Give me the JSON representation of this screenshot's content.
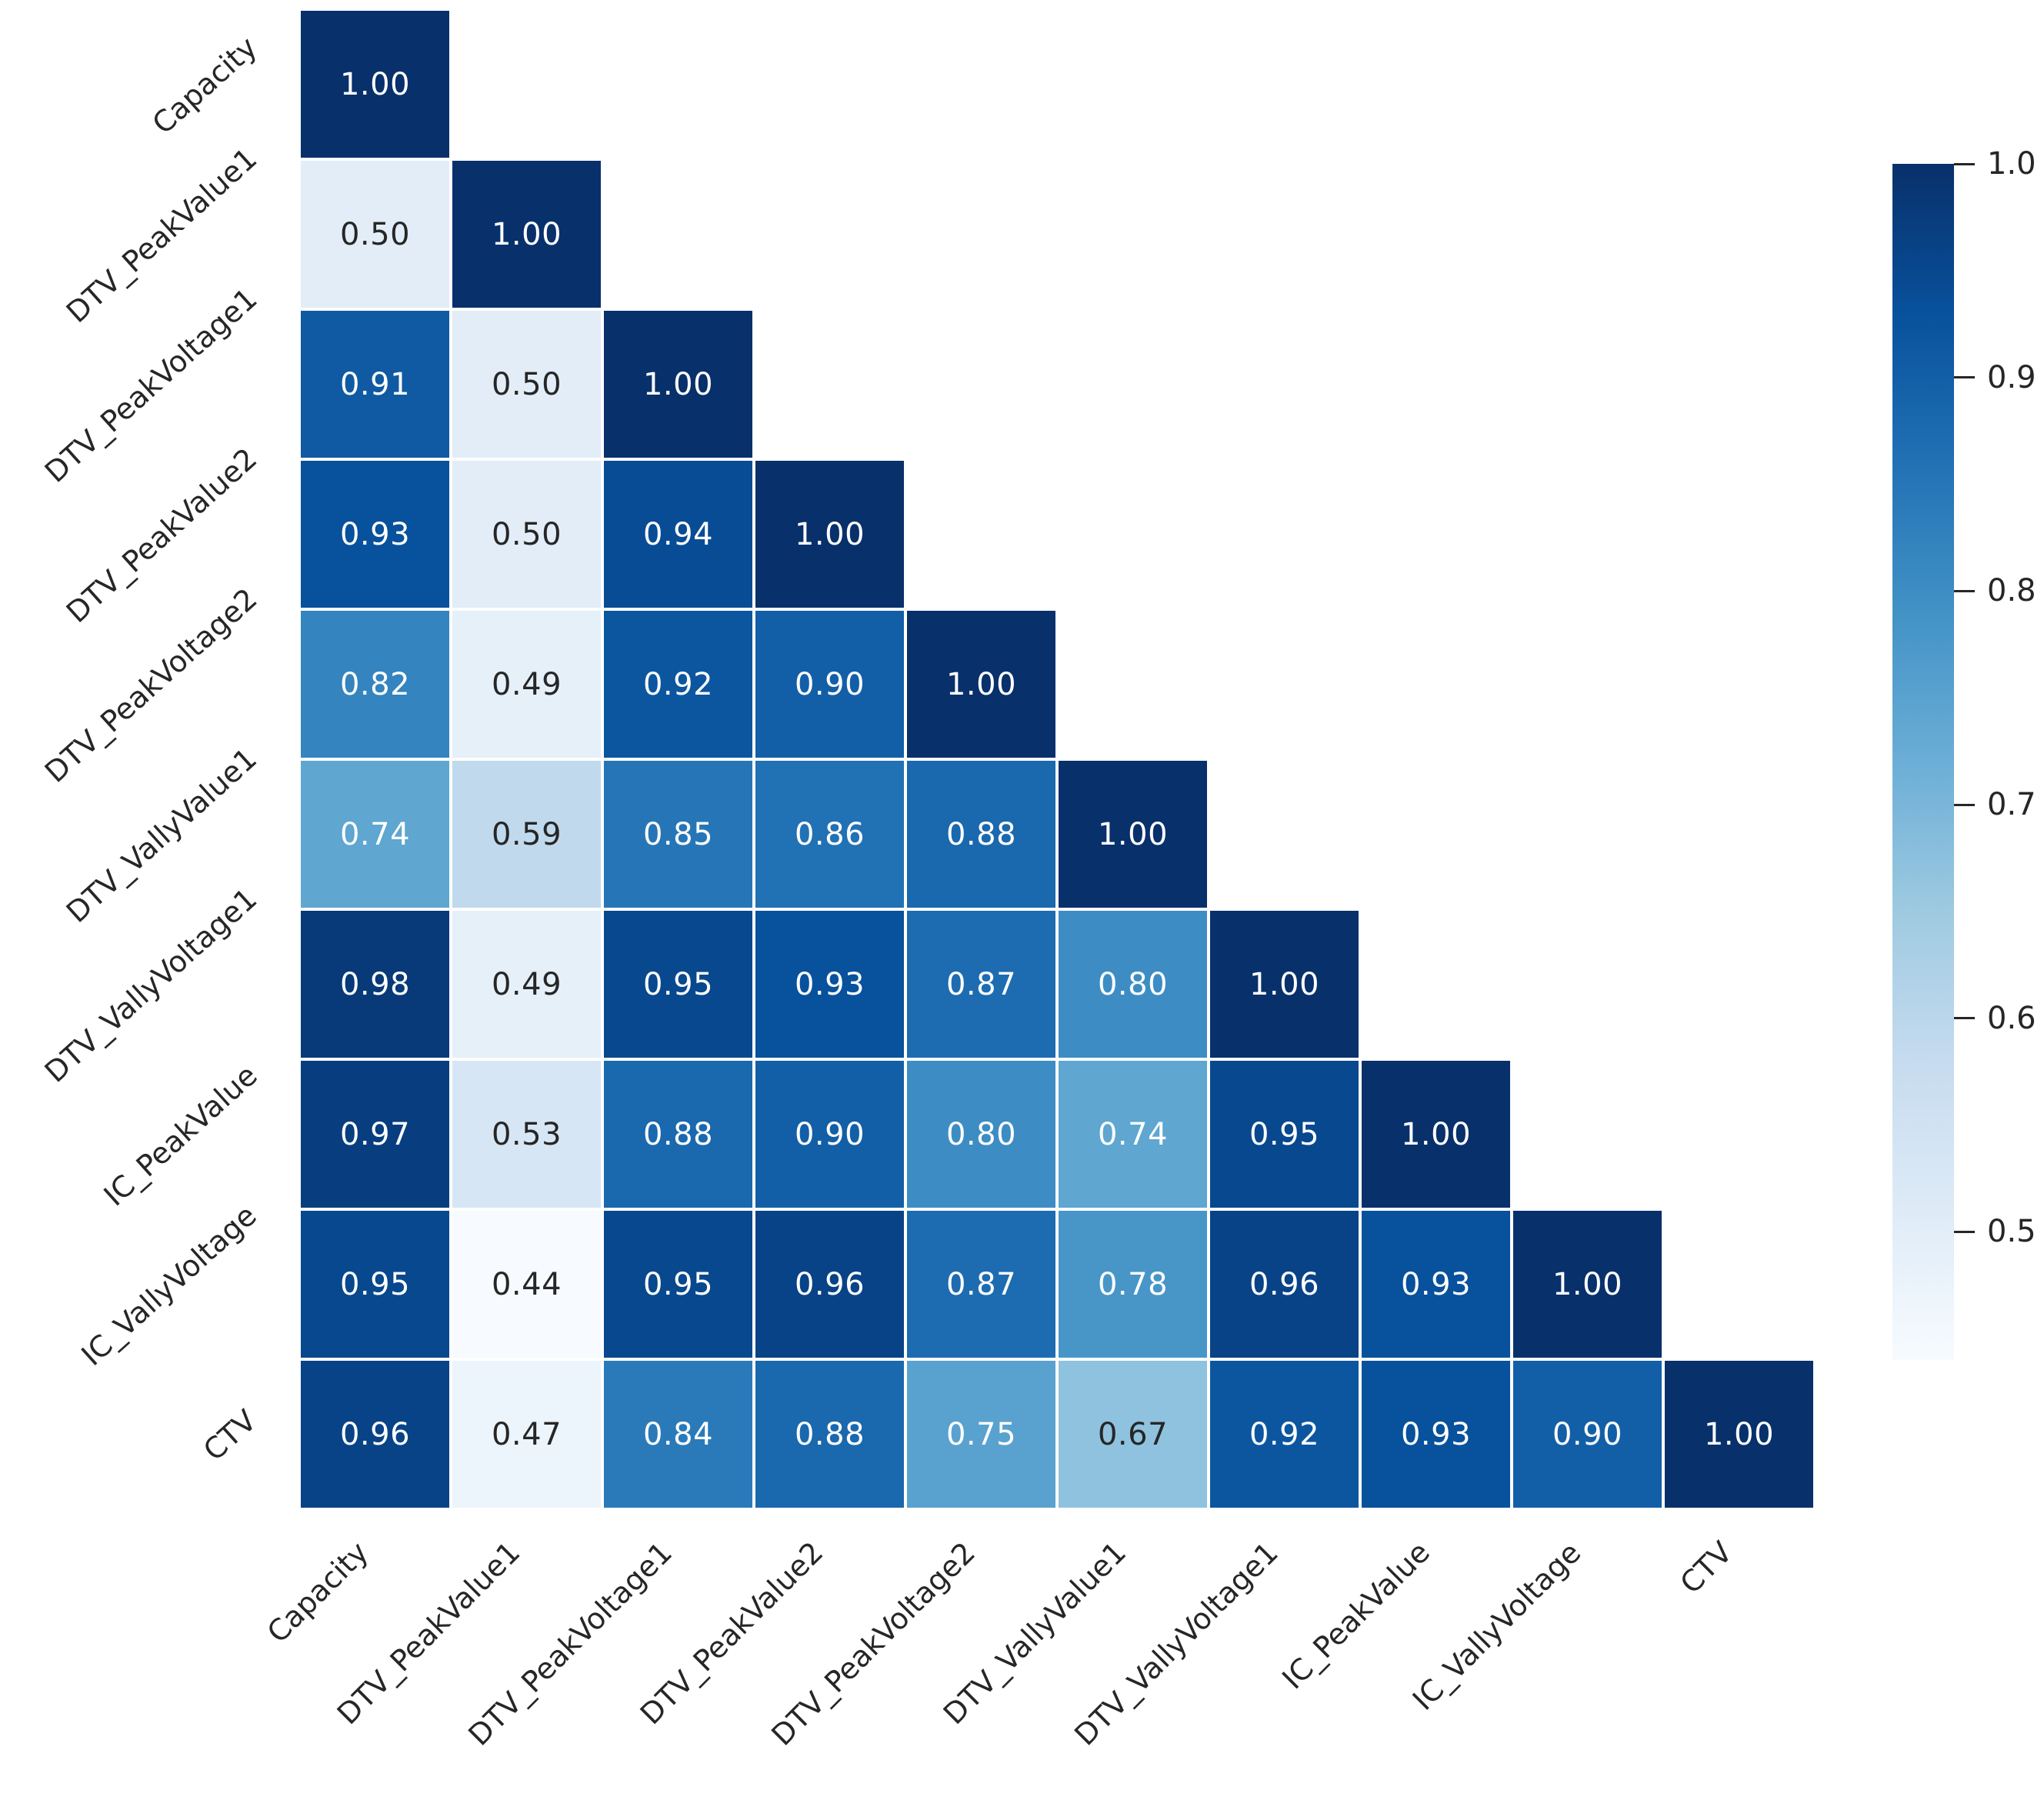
{
  "chart_data": {
    "type": "heatmap",
    "title": "",
    "subtitle": "",
    "description": "Lower-triangular correlation matrix heatmap with Blues colormap and vertical colorbar on the right",
    "variables": [
      "Capacity",
      "DTV_PeakValue1",
      "DTV_PeakVoltage1",
      "DTV_PeakValue2",
      "DTV_PeakVoltage2",
      "DTV_VallyValue1",
      "DTV_VallyVoltage1",
      "IC_PeakValue",
      "IC_VallyVoltage",
      "CTV"
    ],
    "x_tick_labels": [
      "Capacity",
      "DTV_PeakValue1",
      "DTV_PeakVoltage1",
      "DTV_PeakValue2",
      "DTV_PeakVoltage2",
      "DTV_VallyValue1",
      "DTV_VallyVoltage1",
      "IC_PeakValue",
      "IC_VallyVoltage",
      "CTV"
    ],
    "y_tick_labels": [
      "Capacity",
      "DTV_PeakValue1",
      "DTV_PeakVoltage1",
      "DTV_PeakValue2",
      "DTV_PeakVoltage2",
      "DTV_VallyValue1",
      "DTV_VallyVoltage1",
      "IC_PeakValue",
      "IC_VallyVoltage",
      "CTV"
    ],
    "matrix_lower_triangle": [
      [
        1.0
      ],
      [
        0.5,
        1.0
      ],
      [
        0.91,
        0.5,
        1.0
      ],
      [
        0.93,
        0.5,
        0.94,
        1.0
      ],
      [
        0.82,
        0.49,
        0.92,
        0.9,
        1.0
      ],
      [
        0.74,
        0.59,
        0.85,
        0.86,
        0.88,
        1.0
      ],
      [
        0.98,
        0.49,
        0.95,
        0.93,
        0.87,
        0.8,
        1.0
      ],
      [
        0.97,
        0.53,
        0.88,
        0.9,
        0.8,
        0.74,
        0.95,
        1.0
      ],
      [
        0.95,
        0.44,
        0.95,
        0.96,
        0.87,
        0.78,
        0.96,
        0.93,
        1.0
      ],
      [
        0.96,
        0.47,
        0.84,
        0.88,
        0.75,
        0.67,
        0.92,
        0.93,
        0.9,
        1.0
      ]
    ],
    "annotation_format": "2-decimals",
    "vmin": 0.44,
    "vmax": 1.0,
    "mask": "upper-triangle-hidden",
    "grid_line_color": "#ffffff",
    "colormap": {
      "name": "Blues",
      "stops": [
        [
          0.0,
          "#f7fbff"
        ],
        [
          0.125,
          "#deebf7"
        ],
        [
          0.25,
          "#c6dbef"
        ],
        [
          0.375,
          "#9ecae1"
        ],
        [
          0.5,
          "#6baed6"
        ],
        [
          0.625,
          "#4292c6"
        ],
        [
          0.75,
          "#2171b5"
        ],
        [
          0.875,
          "#08519c"
        ],
        [
          1.0,
          "#08306b"
        ]
      ]
    },
    "annotation_color_dark": "#262626",
    "annotation_color_light": "#ffffff",
    "tick_label_color": "#262626",
    "legend_position": "colorbar-right",
    "colorbar": {
      "ticks": [
        {
          "value": 1.0,
          "label": "1.0"
        },
        {
          "value": 0.9,
          "label": "0.9"
        },
        {
          "value": 0.8,
          "label": "0.8"
        },
        {
          "value": 0.7,
          "label": "0.7"
        },
        {
          "value": 0.6,
          "label": "0.6"
        },
        {
          "value": 0.5,
          "label": "0.5"
        }
      ]
    }
  }
}
